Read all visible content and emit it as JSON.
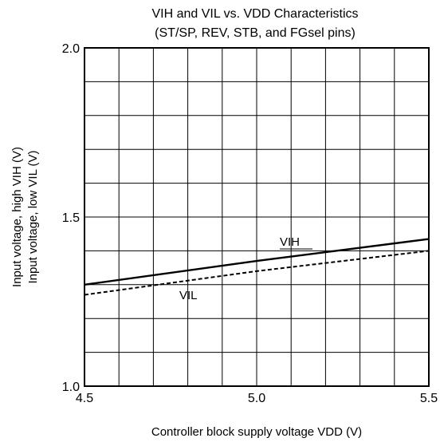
{
  "chart_data": {
    "type": "line",
    "title_lines": [
      "VIH and VIL vs. VDD Characteristics",
      "(ST/SP, REV, STB, and FGsel pins)"
    ],
    "xlabel": "Controller block supply voltage VDD (V)",
    "ylabel_lines": [
      "Input voltage, high VIH (V)",
      "Input voltage, low VIL (V)"
    ],
    "xlim": [
      4.5,
      5.5
    ],
    "ylim": [
      1.0,
      2.0
    ],
    "x_ticks": [
      "4.5",
      "5.0",
      "5.5"
    ],
    "y_ticks": [
      "1.0",
      "1.5",
      "2.0"
    ],
    "grid": true,
    "series": [
      {
        "name": "VIH",
        "style": "solid",
        "color": "#000000",
        "x": [
          4.5,
          5.0,
          5.5
        ],
        "y": [
          1.3,
          1.37,
          1.435
        ]
      },
      {
        "name": "VIL",
        "style": "dashed",
        "color": "#000000",
        "x": [
          4.5,
          5.0,
          5.5
        ],
        "y": [
          1.27,
          1.34,
          1.4
        ]
      }
    ]
  }
}
